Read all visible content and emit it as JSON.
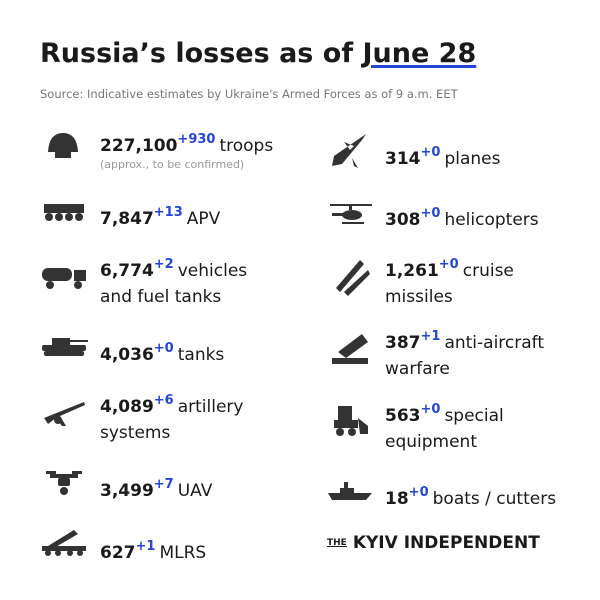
{
  "header": {
    "title_prefix": "Russia’s losses as of",
    "title_date": "June 28",
    "source": "Source: Indicative estimates by Ukraine's Armed Forces as of 9 a.m. EET"
  },
  "left": [
    {
      "value": "227,100",
      "delta": "+930",
      "label_lines": [
        "troops"
      ],
      "note": "(approx., to be confirmed)"
    },
    {
      "value": "7,847",
      "delta": "+13",
      "label_lines": [
        "APV"
      ]
    },
    {
      "value": "6,774",
      "delta": "+2",
      "label_lines": [
        "vehicles",
        "and fuel tanks"
      ]
    },
    {
      "value": "4,036",
      "delta": "+0",
      "label_lines": [
        "tanks"
      ]
    },
    {
      "value": "4,089",
      "delta": "+6",
      "label_lines": [
        "artillery",
        "systems"
      ]
    },
    {
      "value": "3,499",
      "delta": "+7",
      "label_lines": [
        "UAV"
      ]
    },
    {
      "value": "627",
      "delta": "+1",
      "label_lines": [
        "MLRS"
      ]
    }
  ],
  "right": [
    {
      "value": "314",
      "delta": "+0",
      "label_lines": [
        "planes"
      ]
    },
    {
      "value": "308",
      "delta": "+0",
      "label_lines": [
        "helicopters"
      ]
    },
    {
      "value": "1,261",
      "delta": "+0",
      "label_lines": [
        "cruise",
        "missiles"
      ]
    },
    {
      "value": "387",
      "delta": "+1",
      "label_lines": [
        "anti-aircraft",
        "warfare"
      ]
    },
    {
      "value": "563",
      "delta": "+0",
      "label_lines": [
        "special",
        "equipment"
      ]
    },
    {
      "value": "18",
      "delta": "+0",
      "label_lines": [
        "boats / cutters"
      ]
    }
  ],
  "footer": {
    "the": "THE",
    "name": "KYIV INDEPENDENT"
  }
}
